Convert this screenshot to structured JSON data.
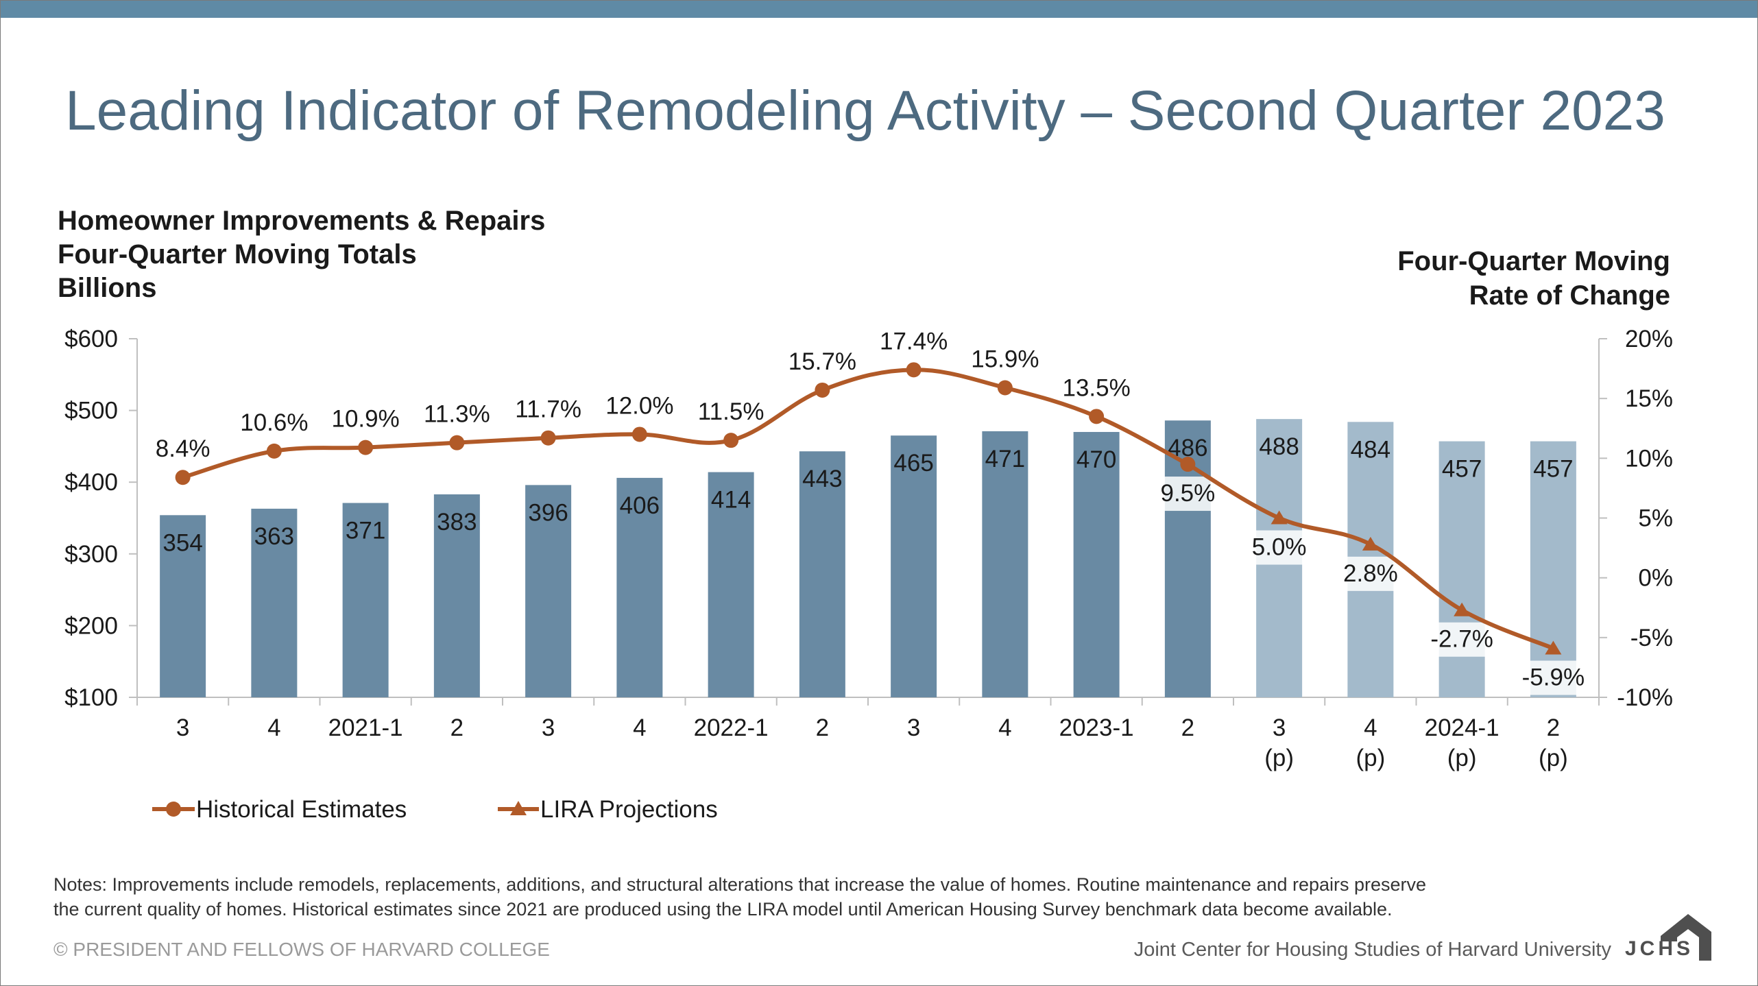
{
  "title": "Leading Indicator of Remodeling Activity – Second Quarter 2023",
  "left_axis_title": [
    "Homeowner Improvements & Repairs",
    "Four-Quarter Moving Totals",
    "Billions"
  ],
  "right_axis_title": [
    "Four-Quarter Moving",
    "Rate of Change"
  ],
  "notes": [
    "Notes: Improvements include remodels, replacements, additions, and structural alterations that increase the value of homes. Routine maintenance and repairs preserve",
    "the current quality of homes. Historical estimates since 2021 are produced using the LIRA model until American Housing Survey benchmark data become available."
  ],
  "copyright": "© PRESIDENT AND FELLOWS OF HARVARD COLLEGE",
  "org_name": "Joint Center for Housing Studies of Harvard University",
  "logo_text": "JCHS",
  "colors": {
    "topbar": "#5f8aa5",
    "title": "#4d6a80",
    "bar_historical": "#698aa3",
    "bar_projection": "#a3bacb",
    "line": "#b15a28"
  },
  "chart_data": {
    "type": "bar",
    "categories": [
      [
        "3"
      ],
      [
        "4"
      ],
      [
        "2021-1"
      ],
      [
        "2"
      ],
      [
        "3"
      ],
      [
        "4"
      ],
      [
        "2022-1"
      ],
      [
        "2"
      ],
      [
        "3"
      ],
      [
        "4"
      ],
      [
        "2023-1"
      ],
      [
        "2"
      ],
      [
        "3",
        "(p)"
      ],
      [
        "4",
        "(p)"
      ],
      [
        "2024-1",
        "(p)"
      ],
      [
        "2",
        "(p)"
      ]
    ],
    "bar_labels": [
      "354",
      "363",
      "371",
      "383",
      "396",
      "406",
      "414",
      "443",
      "465",
      "471",
      "470",
      "486",
      "488",
      "484",
      "457",
      "457"
    ],
    "bar_values": [
      354,
      363,
      371,
      383,
      396,
      406,
      414,
      443,
      465,
      471,
      470,
      486,
      488,
      484,
      457,
      457
    ],
    "bar_projection": [
      false,
      false,
      false,
      false,
      false,
      false,
      false,
      false,
      false,
      false,
      false,
      false,
      true,
      true,
      true,
      true
    ],
    "left_axis": {
      "min": 100,
      "max": 600,
      "ticks": [
        "$600",
        "$500",
        "$400",
        "$300",
        "$200",
        "$100"
      ]
    },
    "right_axis": {
      "min": -10,
      "max": 20,
      "ticks": [
        "20%",
        "15%",
        "10%",
        "5%",
        "0%",
        "-5%",
        "-10%"
      ]
    },
    "series": [
      {
        "name": "Historical Estimates",
        "marker": "circle",
        "values": [
          8.4,
          10.6,
          10.9,
          11.3,
          11.7,
          12.0,
          11.5,
          15.7,
          17.4,
          15.9,
          13.5,
          9.5,
          null,
          null,
          null,
          null
        ],
        "labels": [
          "8.4%",
          "10.6%",
          "10.9%",
          "11.3%",
          "11.7%",
          "12.0%",
          "11.5%",
          "15.7%",
          "17.4%",
          "15.9%",
          "13.5%",
          "9.5%",
          "",
          "",
          "",
          ""
        ]
      },
      {
        "name": "LIRA Projections",
        "marker": "triangle",
        "values": [
          null,
          null,
          null,
          null,
          null,
          null,
          null,
          null,
          null,
          null,
          null,
          9.5,
          5.0,
          2.8,
          -2.7,
          -5.9
        ],
        "labels": [
          "",
          "",
          "",
          "",
          "",
          "",
          "",
          "",
          "",
          "",
          "",
          "",
          "5.0%",
          "2.8%",
          "-2.7%",
          "-5.9%"
        ]
      }
    ],
    "legend": [
      "Historical Estimates",
      "LIRA Projections"
    ],
    "legend_position": "bottom-left"
  }
}
